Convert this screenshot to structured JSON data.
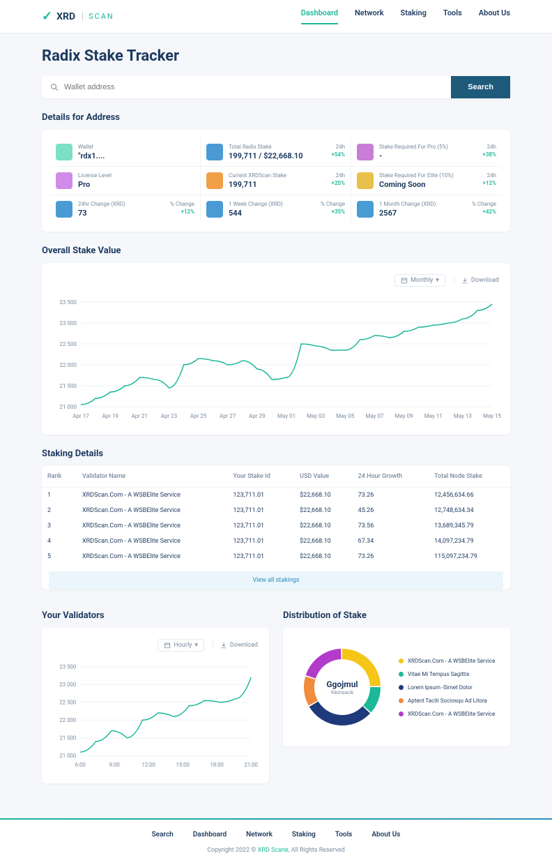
{
  "brand": {
    "name": "XRD",
    "sub": "SCAN",
    "accent": "#1bb89a"
  },
  "nav": {
    "items": [
      "Dashboard",
      "Network",
      "Staking",
      "Tools",
      "About Us"
    ],
    "active": 0
  },
  "page_title": "Radix Stake Tracker",
  "search": {
    "placeholder": "Wallet address",
    "button": "Search"
  },
  "details": {
    "heading": "Details for Address",
    "cells": [
      {
        "label": "Wallet",
        "value": "\"rdx1....",
        "right_top": "",
        "right_bottom": "",
        "icon": "#7be0c5"
      },
      {
        "label": "Total Radix Stake",
        "value": "199,711 / $22,668.10",
        "right_top": "24h",
        "right_bottom": "+54%",
        "icon": "#4a9bd4"
      },
      {
        "label": "Stake Required For Pro (5%)",
        "value": "-",
        "right_top": "24h",
        "right_bottom": "+38%",
        "icon": "#c97dd6"
      },
      {
        "label": "License Level",
        "value": "Pro",
        "right_top": "",
        "right_bottom": "",
        "icon": "#d08be8"
      },
      {
        "label": "Current XRDScan Stake",
        "value": "199,711",
        "right_top": "24h",
        "right_bottom": "+25%",
        "icon": "#f2a048"
      },
      {
        "label": "Stake Required For Elite (10%)",
        "value": "Coming Soon",
        "right_top": "24h",
        "right_bottom": "+12%",
        "icon": "#e8c04a"
      },
      {
        "label": "24hr Change (XRD)",
        "value": "73",
        "right_top": "% Change",
        "right_bottom": "+12%",
        "icon": "#4a9bd4"
      },
      {
        "label": "1 Week Change (XRD)",
        "value": "544",
        "right_top": "% Change",
        "right_bottom": "+35%",
        "icon": "#4a9bd4"
      },
      {
        "label": "1 Month Change (XRD)",
        "value": "2567",
        "right_top": "% Change",
        "right_bottom": "+42%",
        "icon": "#4a9bd4"
      }
    ]
  },
  "overall_chart": {
    "heading": "Overall Stake Value",
    "period_label": "Monthly",
    "download_label": "Download",
    "type": "line",
    "line_color": "#1bb89a",
    "grid_color": "#eef1f5",
    "background_color": "#ffffff",
    "y_ticks": [
      "21 000",
      "21 500",
      "22 000",
      "22 500",
      "23 000",
      "23 500"
    ],
    "ylim": [
      21000,
      23500
    ],
    "x_ticks": [
      "Apr 17",
      "Apr 19",
      "Apr 21",
      "Apr 23",
      "Apr 25",
      "Apr 27",
      "Apr 29",
      "May 01",
      "May 03",
      "May 05",
      "May 07",
      "May 09",
      "May 11",
      "May 13",
      "May 15"
    ],
    "values": [
      21050,
      21200,
      21350,
      21500,
      21700,
      21650,
      21450,
      22000,
      22150,
      22100,
      22000,
      22100,
      21900,
      21650,
      21700,
      22500,
      22450,
      22350,
      22350,
      22600,
      22700,
      22650,
      22800,
      22900,
      22950,
      23000,
      23100,
      23300,
      23450
    ]
  },
  "staking_table": {
    "heading": "Staking Details",
    "columns": [
      "Rank",
      "Validator Name",
      "Your Stake Id",
      "USD Value",
      "24 Hour Growth",
      "Total Node Stake"
    ],
    "rows": [
      [
        "1",
        "XRDScan.Com - A WSBElite Service",
        "123,711.01",
        "$22,668.10",
        "73.26",
        "12,456,634.66"
      ],
      [
        "2",
        "XRDScan.Com - A WSBElite Service",
        "123,711.01",
        "$22,668.10",
        "45.26",
        "12,748,634.34"
      ],
      [
        "3",
        "XRDScan.Com - A WSBElite Service",
        "123,711.01",
        "$22,668.10",
        "73.56",
        "13,689,345.79"
      ],
      [
        "4",
        "XRDScan.Com - A WSBElite Service",
        "123,711.01",
        "$22,668.10",
        "67.34",
        "14,097,234.79"
      ],
      [
        "5",
        "XRDScan.Com - A WSBElite Service",
        "123,711.01",
        "$22,668.10",
        "73.26",
        "115,097,234.79"
      ]
    ],
    "view_all": "View all stakings"
  },
  "validators_chart": {
    "heading": "Your Validators",
    "period_label": "Hourly",
    "download_label": "Download",
    "type": "line",
    "line_color": "#1bb89a",
    "y_ticks": [
      "21 000",
      "21 500",
      "22 000",
      "22 500",
      "23 000",
      "23 500"
    ],
    "ylim": [
      21000,
      23500
    ],
    "x_ticks": [
      "6:00",
      "9:00",
      "12:00",
      "15:00",
      "18:00",
      "21:00"
    ],
    "values": [
      21100,
      21400,
      21700,
      21500,
      22000,
      22200,
      22100,
      22400,
      22550,
      22500,
      22600,
      23200
    ]
  },
  "donut": {
    "heading": "Distribution of Stake",
    "center_title": "Ggojmul",
    "center_sub": "Kikmsacik",
    "type": "donut",
    "slices": [
      {
        "label": "XRDScan.Com - A WSBElite Service",
        "color": "#f5c518",
        "value": 25
      },
      {
        "label": "Vitae Mi Tempus Sagittis",
        "color": "#1bb89a",
        "value": 12
      },
      {
        "label": "Lorem Ipsum -Simet Dolor",
        "color": "#1e3a7a",
        "value": 30
      },
      {
        "label": "Aptent Taciti Sociosqu Ad Litora",
        "color": "#f28b3b",
        "value": 13
      },
      {
        "label": "XRDScan.Com - A WSBElite Service",
        "color": "#b23bc9",
        "value": 20
      }
    ]
  },
  "footer": {
    "nav": [
      "Search",
      "Dashboard",
      "Network",
      "Staking",
      "Tools",
      "About Us"
    ],
    "copyright_pre": "Copyright 2022 © ",
    "copyright_link": "XRD Scane",
    "copyright_post": ", All Rights Reserved"
  }
}
